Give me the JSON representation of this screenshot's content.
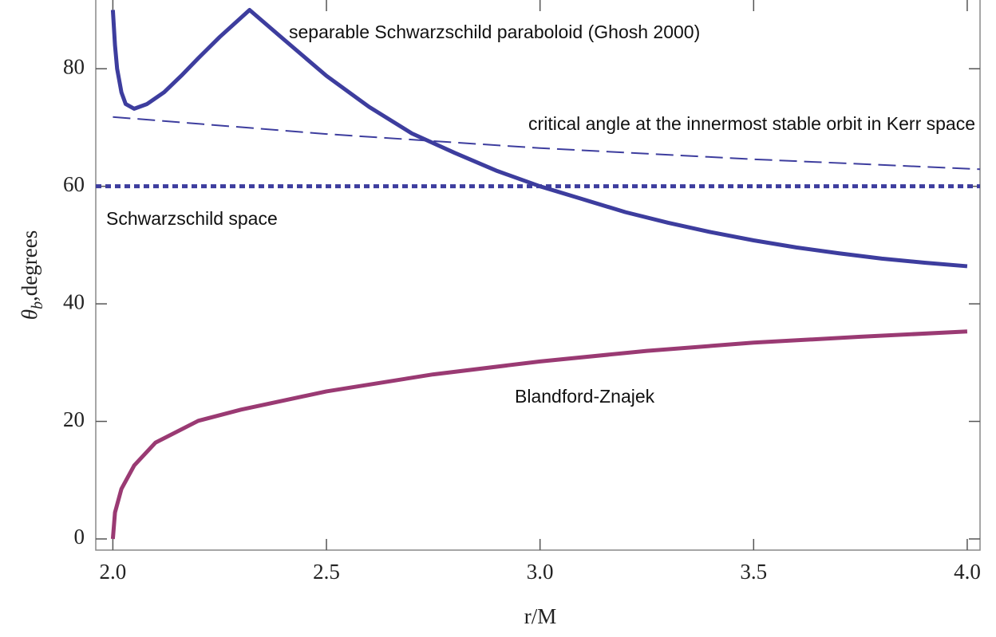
{
  "chart_data": {
    "type": "line",
    "xlabel": "r/M",
    "ylabel": {
      "symbol": "θ",
      "subscript": "b",
      "text": ",degrees"
    },
    "xlim": [
      1.96,
      4.03
    ],
    "ylim": [
      -1.9,
      91.7
    ],
    "xticks": [
      {
        "value": 2,
        "label": "2.0"
      },
      {
        "value": 2.5,
        "label": "2.5"
      },
      {
        "value": 3,
        "label": "3.0"
      },
      {
        "value": 3.5,
        "label": "3.5"
      },
      {
        "value": 4,
        "label": "4.0"
      }
    ],
    "yticks": [
      0,
      20,
      40,
      60,
      80
    ],
    "annotations": [
      "separable Schwarzschild paraboloid (Ghosh 2000)",
      "critical angle at the innermost stable orbit in Kerr space",
      "Schwarzschild space",
      "Blandford-Znajek"
    ],
    "series": [
      {
        "color": "#3d3d9e",
        "style": "solid",
        "width": 5,
        "x": [
          2.0,
          2.005,
          2.01,
          2.02,
          2.03,
          2.05,
          2.08,
          2.12,
          2.16,
          2.2,
          2.25,
          2.32,
          2.4,
          2.5,
          2.6,
          2.7,
          2.8,
          2.9,
          3.0,
          3.1,
          3.2,
          3.3,
          3.4,
          3.5,
          3.6,
          3.7,
          3.8,
          3.9,
          4.0
        ],
        "values": [
          90,
          84,
          80,
          76,
          74,
          73.2,
          74,
          76,
          78.8,
          81.8,
          85.4,
          90,
          85,
          78.8,
          73.5,
          69,
          65.7,
          62.6,
          60,
          57.8,
          55.6,
          53.8,
          52.2,
          50.8,
          49.6,
          48.6,
          47.7,
          47,
          46.4
        ]
      },
      {
        "color": "#3d3d9e",
        "style": "dashed",
        "width": 2,
        "x": [
          2.0,
          2.5,
          3.0,
          3.5,
          4.03
        ],
        "values": [
          71.8,
          68.9,
          66.5,
          64.6,
          62.9
        ]
      },
      {
        "color": "#3d3d9e",
        "style": "dotted",
        "width": 5,
        "x": [
          1.96,
          4.03
        ],
        "values": [
          60,
          60
        ]
      },
      {
        "color": "#9a3a73",
        "style": "solid",
        "width": 5,
        "x": [
          2.0,
          2.005,
          2.02,
          2.05,
          2.1,
          2.2,
          2.3,
          2.5,
          2.75,
          3.0,
          3.25,
          3.5,
          3.75,
          4.0
        ],
        "values": [
          0,
          4.5,
          8.5,
          12.5,
          16.4,
          20.1,
          22,
          25.1,
          28,
          30.2,
          32,
          33.4,
          34.4,
          35.3
        ]
      }
    ]
  }
}
